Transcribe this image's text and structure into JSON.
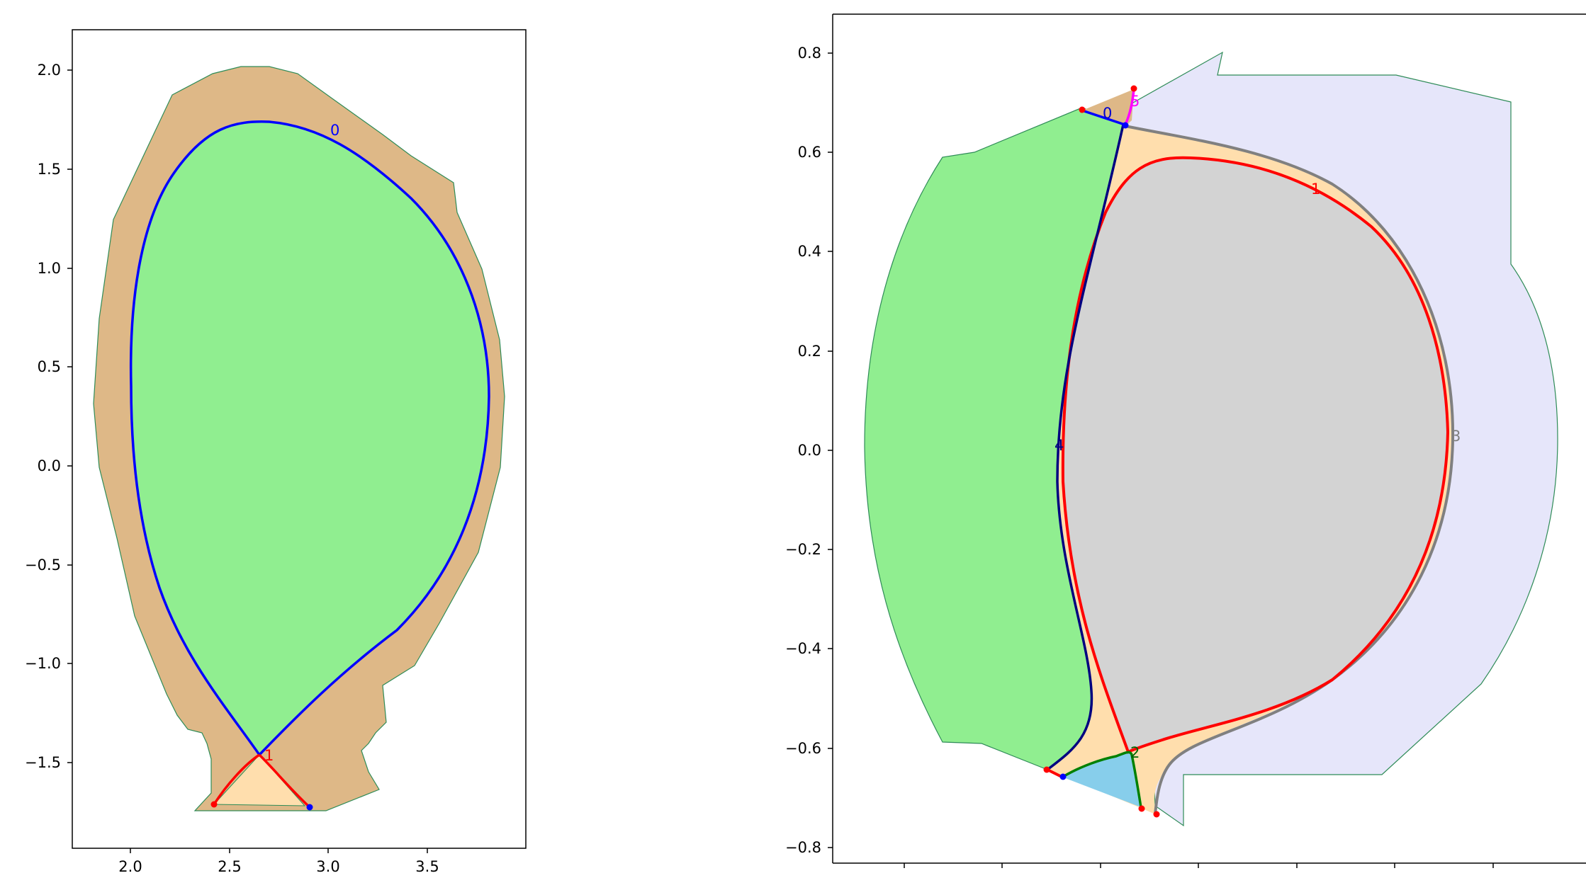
{
  "left_panel": {
    "x_ticks": [
      "2.0",
      "2.5",
      "3.0",
      "3.5"
    ],
    "y_ticks": [
      "2.0",
      "1.5",
      "1.0",
      "0.5",
      "0.0",
      "−0.5",
      "−1.0",
      "−1.5"
    ],
    "curve_labels": [
      {
        "text": "0",
        "color": "#0000ff"
      },
      {
        "text": "1",
        "color": "#ff0000"
      }
    ],
    "colors": {
      "wall": "#deb887",
      "core": "#90ee90",
      "private": "#ffdead",
      "separatrix": "#0000ff",
      "leg": "#ff0000",
      "outline": "#2e8b57"
    }
  },
  "right_panel": {
    "y_ticks": [
      "0.8",
      "0.6",
      "0.4",
      "0.2",
      "0.0",
      "−0.2",
      "−0.4",
      "−0.6",
      "−0.8"
    ],
    "curve_labels": [
      {
        "text": "0",
        "color": "#0000cd"
      },
      {
        "text": "5",
        "color": "#ff00ff"
      },
      {
        "text": "1",
        "color": "#ff0000"
      },
      {
        "text": "3",
        "color": "#808080"
      },
      {
        "text": "4",
        "color": "#000080"
      },
      {
        "text": "2",
        "color": "#006400"
      }
    ],
    "colors": {
      "vessel": "#e6e6fa",
      "inboard": "#90ee90",
      "sol": "#ffdead",
      "core": "#d3d3d3",
      "divertor": "#87ceeb",
      "outline": "#2e8b57"
    }
  }
}
